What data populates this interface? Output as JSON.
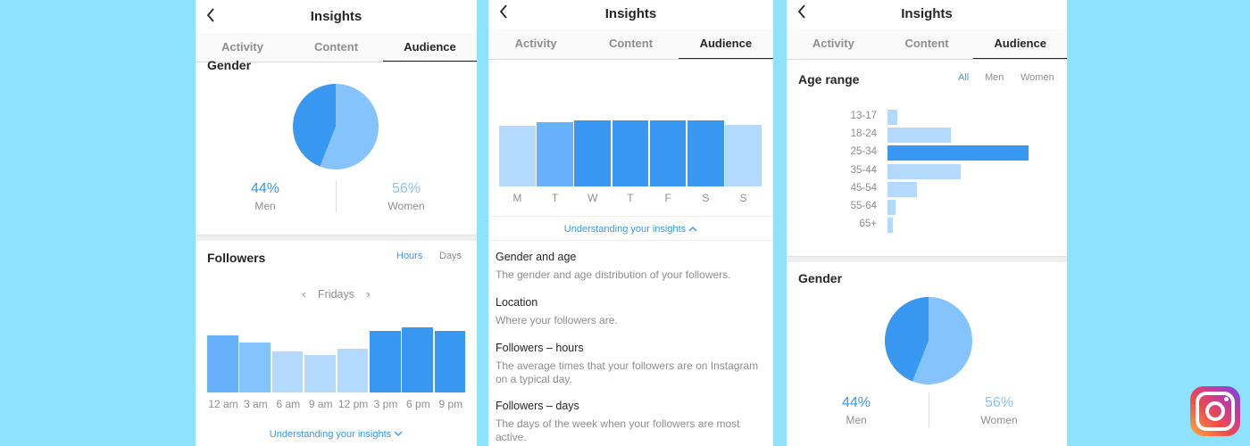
{
  "header": {
    "title": "Insights"
  },
  "tabs": [
    "Activity",
    "Content",
    "Audience"
  ],
  "colors": {
    "dark_blue": "#3897f0",
    "mid_blue": "#67b1fa",
    "light_blue": "#b3dafd",
    "text": "#262626",
    "muted": "#8e8e8e"
  },
  "panel1": {
    "gender_title": "Gender",
    "gender": {
      "men_pct": "44%",
      "men_label": "Men",
      "women_pct": "56%",
      "women_label": "Women"
    },
    "followers_title": "Followers",
    "toggle_hours": "Hours",
    "toggle_days": "Days",
    "day_selector": "Fridays",
    "link": "Understanding your insights"
  },
  "panel2": {
    "link": "Understanding your insights",
    "info": [
      {
        "heading": "Gender and age",
        "text": "The gender and age distribution of your followers."
      },
      {
        "heading": "Location",
        "text": "Where your followers are."
      },
      {
        "heading": "Followers – hours",
        "text": "The average times that your followers are on Instagram on a typical day."
      },
      {
        "heading": "Followers – days",
        "text": "The days of the week when your followers are most active."
      }
    ]
  },
  "panel3": {
    "age_title": "Age range",
    "filters": [
      "All",
      "Men",
      "Women"
    ],
    "gender_title": "Gender",
    "gender": {
      "men_pct": "44%",
      "men_label": "Men",
      "women_pct": "56%",
      "women_label": "Women"
    }
  },
  "chart_data": [
    {
      "type": "pie",
      "labels": [
        "Men",
        "Women"
      ],
      "values": [
        44,
        56
      ],
      "colors": [
        "#3897f0",
        "#85c3fc"
      ]
    },
    {
      "type": "bar",
      "categories": [
        "12 am",
        "3 am",
        "6 am",
        "9 am",
        "12 pm",
        "3 pm",
        "6 pm",
        "9 pm"
      ],
      "values": [
        64,
        56,
        46,
        42,
        49,
        69,
        73,
        69
      ],
      "colors": [
        "#67b1fa",
        "#85c3fc",
        "#b3dafd",
        "#b3dafd",
        "#b3dafd",
        "#3897f0",
        "#3897f0",
        "#3897f0"
      ]
    },
    {
      "type": "bar",
      "categories": [
        "M",
        "T",
        "W",
        "T",
        "F",
        "S",
        "S"
      ],
      "values": [
        68,
        72,
        74,
        74,
        74,
        74,
        69
      ],
      "colors": [
        "#b3dafd",
        "#67b1fa",
        "#3897f0",
        "#3897f0",
        "#3897f0",
        "#3897f0",
        "#b3dafd"
      ]
    },
    {
      "type": "bar",
      "orientation": "horizontal",
      "categories": [
        "13-17",
        "18-24",
        "25-34",
        "35-44",
        "45-54",
        "55-64",
        "65+"
      ],
      "values": [
        7,
        45,
        100,
        52,
        21,
        6,
        4
      ],
      "colors": [
        "#b3dafd",
        "#b3dafd",
        "#3897f0",
        "#b3dafd",
        "#b3dafd",
        "#b3dafd",
        "#b3dafd"
      ]
    },
    {
      "type": "pie",
      "labels": [
        "Men",
        "Women"
      ],
      "values": [
        44,
        56
      ],
      "colors": [
        "#3897f0",
        "#85c3fc"
      ]
    }
  ]
}
